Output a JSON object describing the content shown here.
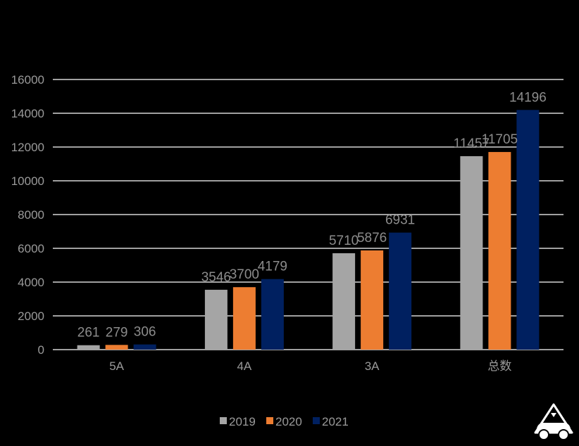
{
  "chart_data": {
    "type": "bar",
    "categories": [
      "5A",
      "4A",
      "3A",
      "总数"
    ],
    "series": [
      {
        "name": "2019",
        "values": [
          261,
          3546,
          5710,
          11457
        ]
      },
      {
        "name": "2020",
        "values": [
          279,
          3700,
          5876,
          11705
        ]
      },
      {
        "name": "2021",
        "values": [
          306,
          4179,
          6931,
          14196
        ]
      }
    ],
    "y_ticks": [
      "0",
      "2000",
      "4000",
      "6000",
      "8000",
      "10000",
      "12000",
      "14000",
      "16000"
    ],
    "ylim": [
      0,
      16000
    ],
    "grid": true,
    "legend_position": "bottom",
    "title": "",
    "xlabel": "",
    "ylabel": ""
  },
  "colors": {
    "background": "#000000",
    "series": [
      "#a5a5a5",
      "#ed7d31",
      "#002060"
    ],
    "grid": "#ffffff",
    "text": "#9a9a9a"
  },
  "watermark": {
    "icon": "car-logo-icon"
  }
}
